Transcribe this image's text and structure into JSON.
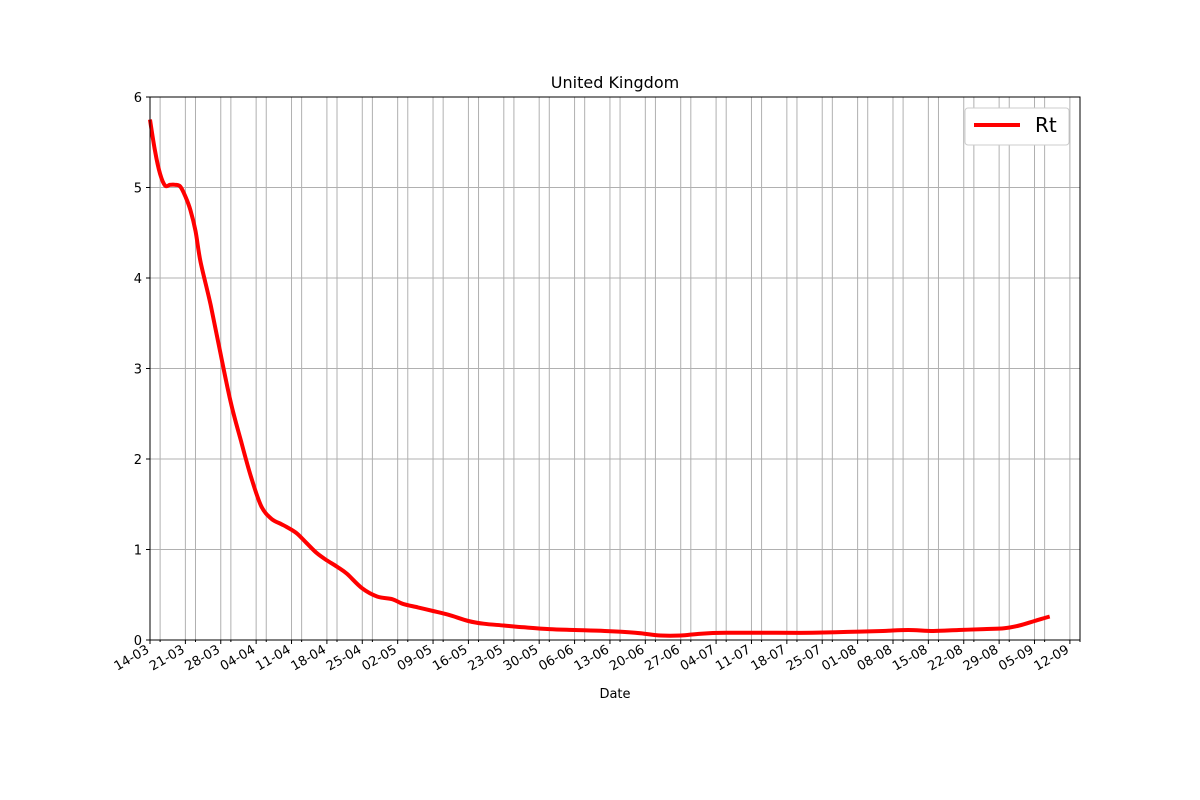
{
  "colors": {
    "line": "#ff0000",
    "grid": "#b0b0b0",
    "axis": "#000000"
  },
  "chart_data": {
    "type": "line",
    "title": "United Kingdom",
    "xlabel": "Date",
    "ylabel": "",
    "ylim": [
      0,
      6
    ],
    "yticks": [
      0,
      1,
      2,
      3,
      4,
      5,
      6
    ],
    "xlim": [
      "2020-03-14",
      "2020-09-14"
    ],
    "grid": true,
    "legend": {
      "position": "upper-right",
      "entries": [
        "Rt"
      ]
    },
    "x_major_ticks": [
      {
        "date": "2020-03-14",
        "label": "14-03"
      },
      {
        "date": "2020-03-21",
        "label": "21-03"
      },
      {
        "date": "2020-03-28",
        "label": "28-03"
      },
      {
        "date": "2020-04-04",
        "label": "04-04"
      },
      {
        "date": "2020-04-11",
        "label": "11-04"
      },
      {
        "date": "2020-04-18",
        "label": "18-04"
      },
      {
        "date": "2020-04-25",
        "label": "25-04"
      },
      {
        "date": "2020-05-02",
        "label": "02-05"
      },
      {
        "date": "2020-05-09",
        "label": "09-05"
      },
      {
        "date": "2020-05-16",
        "label": "16-05"
      },
      {
        "date": "2020-05-23",
        "label": "23-05"
      },
      {
        "date": "2020-05-30",
        "label": "30-05"
      },
      {
        "date": "2020-06-06",
        "label": "06-06"
      },
      {
        "date": "2020-06-13",
        "label": "13-06"
      },
      {
        "date": "2020-06-20",
        "label": "20-06"
      },
      {
        "date": "2020-06-27",
        "label": "27-06"
      },
      {
        "date": "2020-07-04",
        "label": "04-07"
      },
      {
        "date": "2020-07-11",
        "label": "11-07"
      },
      {
        "date": "2020-07-18",
        "label": "18-07"
      },
      {
        "date": "2020-07-25",
        "label": "25-07"
      },
      {
        "date": "2020-08-01",
        "label": "01-08"
      },
      {
        "date": "2020-08-08",
        "label": "08-08"
      },
      {
        "date": "2020-08-15",
        "label": "15-08"
      },
      {
        "date": "2020-08-22",
        "label": "22-08"
      },
      {
        "date": "2020-08-29",
        "label": "29-08"
      },
      {
        "date": "2020-09-05",
        "label": "05-09"
      },
      {
        "date": "2020-09-12",
        "label": "12-09"
      }
    ],
    "x_minor_ticks": [
      "2020-03-16",
      "2020-03-23",
      "2020-03-30",
      "2020-04-06",
      "2020-04-13",
      "2020-04-20",
      "2020-04-27",
      "2020-05-04",
      "2020-05-11",
      "2020-05-18",
      "2020-05-25",
      "2020-06-01",
      "2020-06-08",
      "2020-06-15",
      "2020-06-22",
      "2020-06-29",
      "2020-07-06",
      "2020-07-13",
      "2020-07-20",
      "2020-07-27",
      "2020-08-03",
      "2020-08-10",
      "2020-08-17",
      "2020-08-24",
      "2020-08-31",
      "2020-09-07",
      "2020-09-14"
    ],
    "series": [
      {
        "name": "Rt",
        "x": [
          "2020-03-14",
          "2020-03-15",
          "2020-03-16",
          "2020-03-17",
          "2020-03-18",
          "2020-03-19",
          "2020-03-20",
          "2020-03-21",
          "2020-03-22",
          "2020-03-23",
          "2020-03-24",
          "2020-03-26",
          "2020-03-28",
          "2020-03-30",
          "2020-04-01",
          "2020-04-03",
          "2020-04-05",
          "2020-04-07",
          "2020-04-09",
          "2020-04-10",
          "2020-04-12",
          "2020-04-14",
          "2020-04-16",
          "2020-04-18",
          "2020-04-20",
          "2020-04-22",
          "2020-04-25",
          "2020-04-28",
          "2020-05-01",
          "2020-05-03",
          "2020-05-06",
          "2020-05-09",
          "2020-05-12",
          "2020-05-16",
          "2020-05-19",
          "2020-05-23",
          "2020-05-27",
          "2020-06-01",
          "2020-06-06",
          "2020-06-12",
          "2020-06-18",
          "2020-06-23",
          "2020-06-27",
          "2020-07-01",
          "2020-07-06",
          "2020-07-11",
          "2020-07-16",
          "2020-07-23",
          "2020-07-30",
          "2020-08-06",
          "2020-08-11",
          "2020-08-16",
          "2020-08-21",
          "2020-08-26",
          "2020-08-30",
          "2020-09-02",
          "2020-09-05",
          "2020-09-08"
        ],
        "values": [
          5.75,
          5.4,
          5.15,
          5.02,
          5.03,
          5.03,
          5.01,
          4.9,
          4.75,
          4.52,
          4.18,
          3.7,
          3.15,
          2.62,
          2.2,
          1.8,
          1.48,
          1.34,
          1.28,
          1.25,
          1.18,
          1.07,
          0.96,
          0.88,
          0.81,
          0.73,
          0.57,
          0.48,
          0.45,
          0.4,
          0.36,
          0.32,
          0.28,
          0.21,
          0.18,
          0.16,
          0.14,
          0.12,
          0.11,
          0.1,
          0.08,
          0.05,
          0.05,
          0.07,
          0.08,
          0.08,
          0.08,
          0.08,
          0.09,
          0.1,
          0.11,
          0.1,
          0.11,
          0.12,
          0.13,
          0.16,
          0.21,
          0.26
        ]
      }
    ]
  }
}
